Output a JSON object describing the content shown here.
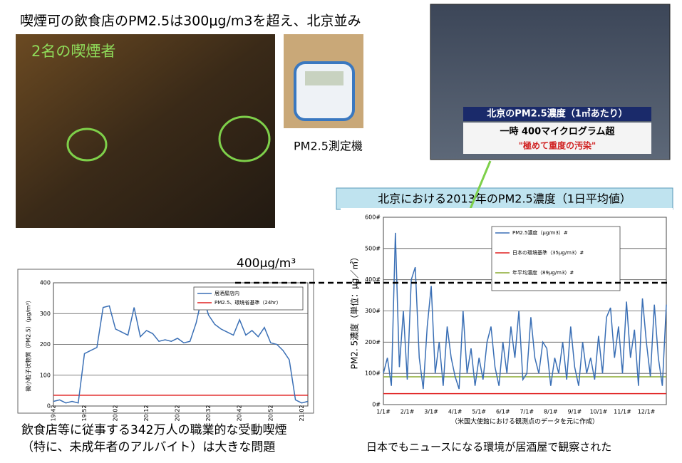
{
  "title": "喫煙可の飲食店のPM2.5は300μg/m3を超え、北京並み",
  "photo_label": "2名の喫煙者",
  "device_label": "PM2.5測定機",
  "tv": {
    "line1": "北京のPM2.5濃度（1㎥あたり）",
    "line2": "一時 400マイクログラム超",
    "line3": "\"極めて重度の汚染\""
  },
  "banner": "北京における2013年のPM2.5濃度（1日平均値）",
  "threshold_label": "400μg/m³",
  "caption_left": [
    "飲食店等に従事する342万人の職業的な受動喫煙",
    "（特に、未成年者のアルバイト）は大きな問題"
  ],
  "caption_right": "日本でもニュースになる環境が居酒屋で観察された",
  "chart_data": [
    {
      "type": "line",
      "ylabel": "微小粒子状物質（PM2.5）（μg/m³）",
      "categories": [
        "19:42",
        null,
        null,
        null,
        null,
        "19:52",
        null,
        null,
        null,
        null,
        "20:02",
        null,
        null,
        null,
        null,
        "20:12",
        null,
        null,
        null,
        null,
        "20:22",
        null,
        null,
        null,
        null,
        "20:32",
        null,
        null,
        null,
        null,
        "20:42",
        null,
        null,
        null,
        null,
        "20:52",
        null,
        null,
        null,
        null,
        "21:02",
        null
      ],
      "series": [
        {
          "name": "居酒屋店内",
          "color": "#3a6fb5",
          "values": [
            15,
            20,
            10,
            15,
            10,
            170,
            180,
            190,
            320,
            325,
            250,
            240,
            230,
            320,
            225,
            245,
            235,
            210,
            215,
            210,
            220,
            205,
            210,
            270,
            360,
            295,
            265,
            250,
            240,
            230,
            280,
            230,
            245,
            225,
            255,
            205,
            200,
            180,
            150,
            20,
            10,
            15
          ]
        }
      ],
      "reference_lines": [
        {
          "name": "PM2.5、環境省基準（24hr）",
          "color": "#e02020",
          "value": 35
        }
      ],
      "ylim": [
        0,
        400
      ],
      "yticks": [
        0,
        100,
        200,
        300,
        400
      ],
      "grid": true
    },
    {
      "type": "line",
      "ylabel": "PM2. 5濃度（単位：μg／㎥）",
      "xlabel": "（米国大使館における観測点のデータを元に作成）",
      "categories": [
        "1/1#",
        null,
        null,
        null,
        null,
        null,
        "2/1#",
        null,
        null,
        null,
        null,
        null,
        "3/1#",
        null,
        null,
        null,
        null,
        null,
        "4/1#",
        null,
        null,
        null,
        null,
        null,
        "5/1#",
        null,
        null,
        null,
        null,
        null,
        "6/1#",
        null,
        null,
        null,
        null,
        null,
        "7/1#",
        null,
        null,
        null,
        null,
        null,
        "8/1#",
        null,
        null,
        null,
        null,
        null,
        "9/1#",
        null,
        null,
        null,
        null,
        null,
        "10/1#",
        null,
        null,
        null,
        null,
        null,
        "11/1#",
        null,
        null,
        null,
        null,
        null,
        "12/1#",
        null,
        null,
        null,
        null,
        null
      ],
      "series": [
        {
          "name": "PM2.5濃度（μg/m3）#",
          "color": "#3a6fb5",
          "values": [
            100,
            150,
            60,
            550,
            120,
            300,
            80,
            400,
            440,
            150,
            50,
            250,
            380,
            100,
            200,
            60,
            250,
            150,
            90,
            50,
            300,
            100,
            180,
            60,
            150,
            80,
            200,
            250,
            120,
            60,
            200,
            100,
            250,
            150,
            300,
            80,
            100,
            280,
            150,
            100,
            200,
            180,
            60,
            150,
            100,
            200,
            80,
            250,
            120,
            60,
            200,
            100,
            150,
            80,
            220,
            100,
            280,
            310,
            150,
            250,
            100,
            330,
            150,
            240,
            60,
            340,
            200,
            90,
            320,
            150,
            60,
            320
          ]
        }
      ],
      "reference_lines": [
        {
          "name": "日本の環境基準（35μg/m3）#",
          "color": "#e02020",
          "value": 35
        },
        {
          "name": "年平均濃度（89μg/m3）#",
          "color": "#8aaa30",
          "value": 89
        }
      ],
      "ylim": [
        0,
        600
      ],
      "yticks": [
        {
          "value": 0,
          "label": "0#"
        },
        {
          "value": 100,
          "label": "100#"
        },
        {
          "value": 200,
          "label": "200#"
        },
        {
          "value": 300,
          "label": "300#"
        },
        {
          "value": 400,
          "label": "400#"
        },
        {
          "value": 500,
          "label": "500#"
        },
        {
          "value": 600,
          "label": "600#"
        }
      ],
      "grid": true
    }
  ]
}
